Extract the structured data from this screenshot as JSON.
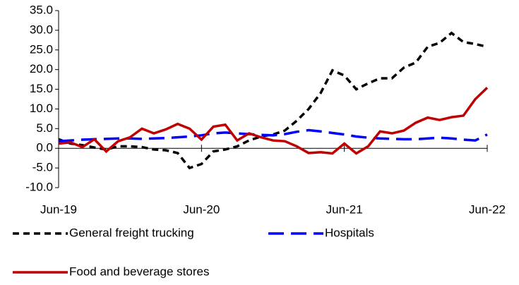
{
  "chart_data": {
    "type": "line",
    "categories": [
      "Jun-19",
      null,
      null,
      null,
      null,
      null,
      null,
      null,
      null,
      null,
      null,
      null,
      "Jun-20",
      null,
      null,
      null,
      null,
      null,
      null,
      null,
      null,
      null,
      null,
      null,
      "Jun-21",
      null,
      null,
      null,
      null,
      null,
      null,
      null,
      null,
      null,
      null,
      null,
      "Jun-22"
    ],
    "series": [
      {
        "name": "General freight trucking",
        "color": "#000000",
        "dash": "dash",
        "values": [
          2.3,
          1.2,
          0.8,
          0.2,
          -0.3,
          0.5,
          0.5,
          0.3,
          -0.3,
          -0.5,
          -1.2,
          -5.0,
          -4.0,
          -0.8,
          -0.3,
          0.5,
          2.0,
          3.0,
          3.5,
          4.5,
          7.0,
          10.0,
          14.0,
          19.8,
          18.5,
          15.0,
          16.5,
          17.8,
          17.8,
          20.5,
          21.8,
          25.8,
          26.8,
          29.3,
          27.0,
          26.5,
          25.8
        ]
      },
      {
        "name": "Hospitals",
        "color": "#0000ff",
        "dash": "longdash",
        "values": [
          1.8,
          2.0,
          2.2,
          2.3,
          2.4,
          2.5,
          2.5,
          2.4,
          2.5,
          2.6,
          2.8,
          3.0,
          3.3,
          3.8,
          4.0,
          3.8,
          3.6,
          3.4,
          3.3,
          3.6,
          4.2,
          4.6,
          4.3,
          3.9,
          3.5,
          3.0,
          2.7,
          2.5,
          2.4,
          2.3,
          2.3,
          2.5,
          2.7,
          2.5,
          2.2,
          2.0,
          3.5
        ]
      },
      {
        "name": "Food and beverage stores",
        "color": "#c00000",
        "dash": "solid",
        "values": [
          1.2,
          1.5,
          0.3,
          2.3,
          -0.8,
          1.8,
          2.8,
          5.0,
          3.8,
          4.8,
          6.2,
          5.0,
          2.2,
          5.5,
          6.0,
          2.0,
          3.8,
          2.8,
          2.0,
          1.8,
          0.5,
          -1.2,
          -1.0,
          -1.3,
          1.2,
          -1.3,
          0.5,
          4.3,
          3.8,
          4.5,
          6.5,
          7.8,
          7.2,
          7.9,
          8.3,
          12.5,
          15.4
        ]
      }
    ],
    "ylim": [
      -10,
      35
    ],
    "yticks": [
      {
        "value": -10,
        "label": "-10.0"
      },
      {
        "value": -5,
        "label": "-5.0"
      },
      {
        "value": 0,
        "label": "0.0"
      },
      {
        "value": 5,
        "label": "5.0"
      },
      {
        "value": 10,
        "label": "10.0"
      },
      {
        "value": 15,
        "label": "15.0"
      },
      {
        "value": 20,
        "label": "20.0"
      },
      {
        "value": 25,
        "label": "25.0"
      },
      {
        "value": 30,
        "label": "30.0"
      },
      {
        "value": 35,
        "label": "35.0"
      }
    ],
    "grid": false,
    "legend": "bottom"
  }
}
